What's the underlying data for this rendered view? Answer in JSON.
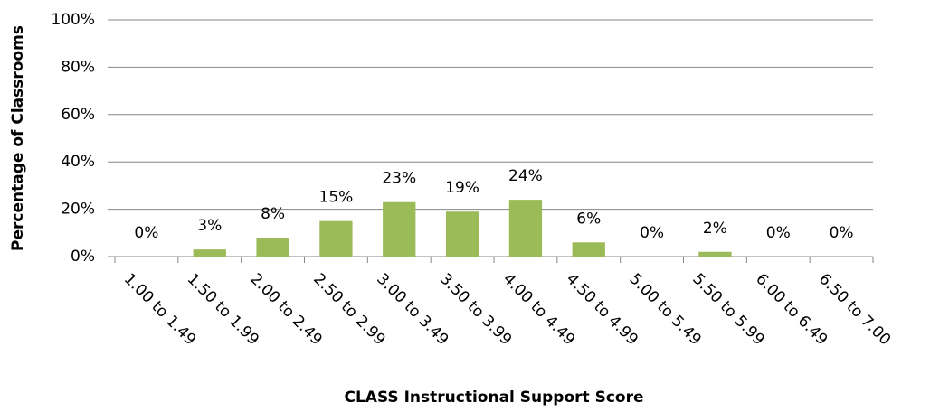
{
  "chart_data": {
    "type": "bar",
    "xlabel": "CLASS Instructional Support Score",
    "ylabel": "Percentage of Classrooms",
    "categories": [
      "1.00 to 1.49",
      "1.50 to 1.99",
      "2.00 to 2.49",
      "2.50 to 2.99",
      "3.00 to 3.49",
      "3.50 to 3.99",
      "4.00 to 4.49",
      "4.50 to 4.99",
      "5.00 to 5.49",
      "5.50 to 5.99",
      "6.00 to 6.49",
      "6.50 to 7.00"
    ],
    "values": [
      0,
      3,
      8,
      15,
      23,
      19,
      24,
      6,
      0,
      2,
      0,
      0
    ],
    "value_labels": [
      "0%",
      "3%",
      "8%",
      "15%",
      "23%",
      "19%",
      "24%",
      "6%",
      "0%",
      "2%",
      "0%",
      "0%"
    ],
    "color": "#9bbb59",
    "ylim": [
      0,
      100
    ],
    "yticks": [
      {
        "value": 0,
        "label": "0%"
      },
      {
        "value": 20,
        "label": "20%"
      },
      {
        "value": 40,
        "label": "40%"
      },
      {
        "value": 60,
        "label": "60%"
      },
      {
        "value": 80,
        "label": "80%"
      },
      {
        "value": 100,
        "label": "100%"
      }
    ],
    "grid": true
  }
}
